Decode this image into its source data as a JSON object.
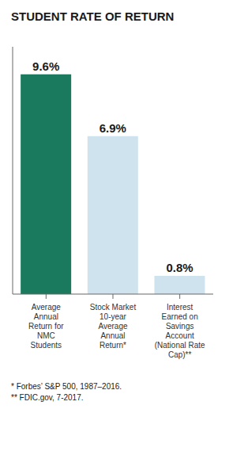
{
  "chart_data": {
    "type": "bar",
    "title": "STUDENT RATE OF RETURN",
    "categories": [
      "Average\nAnnual\nReturn for\nNMC\nStudents",
      "Stock Market\n10-year\nAverage\nAnnual\nReturn*",
      "Interest\nEarned on\nSavings\nAccount\n(National Rate\nCap)**"
    ],
    "values": [
      9.6,
      6.9,
      0.8
    ],
    "value_labels": [
      "9.6%",
      "6.9%",
      "0.8%"
    ],
    "data_labels": true,
    "colors": [
      "#1a7a5e",
      "#cfe3ee",
      "#cfe3ee"
    ],
    "ylim": [
      0,
      10.8
    ],
    "tick_labels": "x",
    "grid": false,
    "annotations": [
      "* Forbes’ S&P 500, 1987–2016.",
      "** FDIC.gov, 7-2017."
    ]
  }
}
